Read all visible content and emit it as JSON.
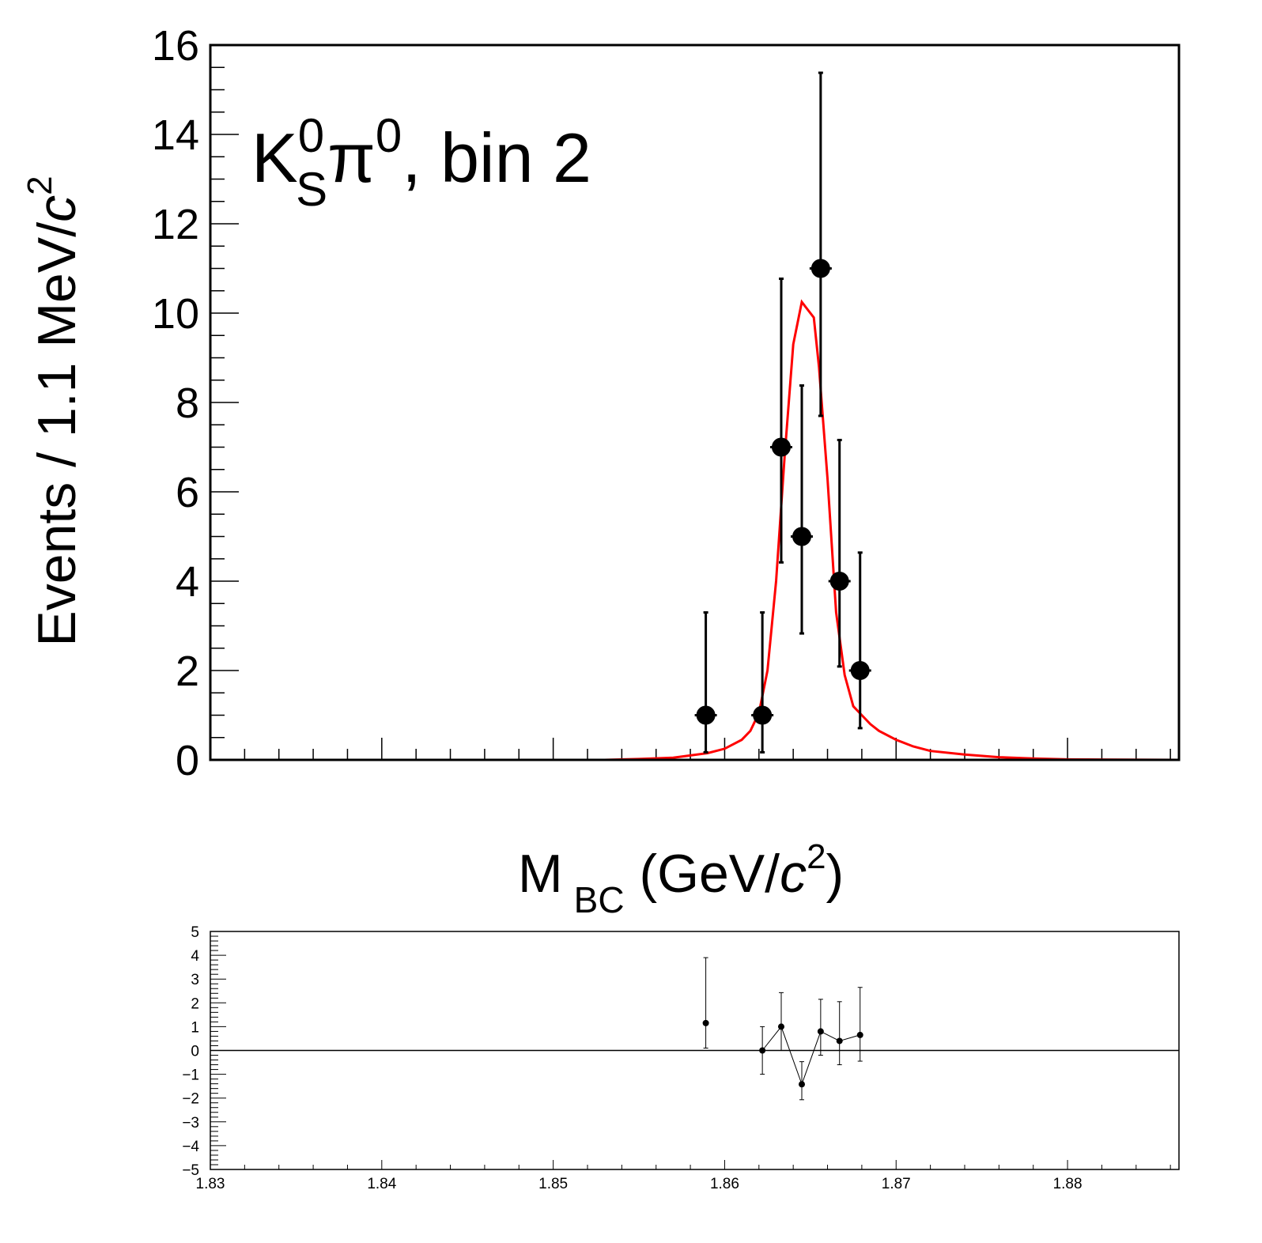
{
  "chart_data": [
    {
      "type": "scatter",
      "panel": "fit",
      "annotation": {
        "main": "K",
        "sup1": "0",
        "sub1": "S",
        "pi": "π",
        "sup2": "0",
        "rest": ", bin 2"
      },
      "ylabel": {
        "main": "Events / 1.1 MeV/",
        "italic": "c",
        "sup": "2"
      },
      "xlabel": {
        "main": "M",
        "sub": "BC",
        "open": " (GeV/",
        "italic": "c",
        "sup": "2",
        "close": ")"
      },
      "xlim": [
        1.83,
        1.8865
      ],
      "ylim": [
        0,
        16
      ],
      "ytick_labels": [
        "0",
        "2",
        "4",
        "6",
        "8",
        "10",
        "12",
        "14",
        "16"
      ],
      "data_points": {
        "x": [
          1.8589,
          1.8622,
          1.8633,
          1.8645,
          1.8656,
          1.8667,
          1.8679
        ],
        "y": [
          1,
          1,
          7,
          5,
          11,
          4,
          2
        ],
        "err_up": [
          2.3,
          2.3,
          3.77,
          3.38,
          4.38,
          3.16,
          2.64
        ],
        "err_down": [
          0.83,
          0.83,
          2.58,
          2.17,
          3.3,
          1.91,
          1.29
        ],
        "color": "#000000"
      },
      "fit_curve": {
        "color": "#ff0000",
        "x": [
          1.83,
          1.853,
          1.855,
          1.857,
          1.858,
          1.859,
          1.86,
          1.861,
          1.8615,
          1.862,
          1.8625,
          1.863,
          1.8635,
          1.864,
          1.8645,
          1.8648,
          1.8652,
          1.8655,
          1.866,
          1.8665,
          1.867,
          1.8675,
          1.868,
          1.8685,
          1.869,
          1.87,
          1.871,
          1.872,
          1.874,
          1.876,
          1.878,
          1.88,
          1.8865
        ],
        "y": [
          0,
          0,
          0.02,
          0.05,
          0.1,
          0.15,
          0.25,
          0.45,
          0.65,
          1.05,
          2.0,
          4.0,
          6.8,
          9.3,
          10.25,
          10.1,
          9.9,
          8.8,
          6.3,
          3.3,
          1.9,
          1.2,
          1.0,
          0.8,
          0.65,
          0.45,
          0.3,
          0.2,
          0.12,
          0.06,
          0.03,
          0.01,
          0
        ]
      }
    },
    {
      "type": "scatter",
      "panel": "pull",
      "xlim": [
        1.83,
        1.8865
      ],
      "ylim": [
        -5,
        5
      ],
      "xtick_labels": [
        "1.83",
        "1.84",
        "1.85",
        "1.86",
        "1.87",
        "1.88"
      ],
      "ytick_labels": [
        "−5",
        "−4",
        "−3",
        "−2",
        "−1",
        "0",
        "1",
        "2",
        "3",
        "4",
        "5"
      ],
      "points": {
        "x": [
          1.8589,
          1.8622,
          1.8633,
          1.8645,
          1.8656,
          1.8667,
          1.8679
        ],
        "y": [
          1.15,
          0.0,
          1.0,
          -1.42,
          0.8,
          0.4,
          0.65
        ],
        "err_up": [
          2.75,
          1.0,
          1.43,
          0.95,
          1.35,
          1.65,
          2.0
        ],
        "err_down": [
          1.05,
          1.0,
          1.0,
          0.65,
          1.0,
          1.0,
          1.1
        ],
        "color": "#000000"
      }
    }
  ]
}
